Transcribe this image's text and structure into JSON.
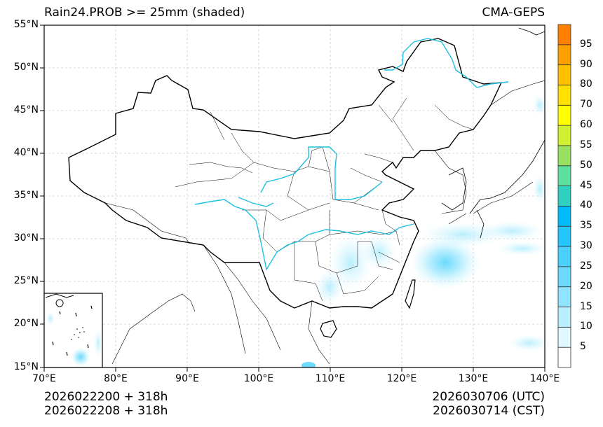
{
  "header": {
    "title": "Rain24.PROB >= 25mm (shaded)",
    "model": "CMA-GEPS"
  },
  "footer": {
    "init_utc": "2026022200 + 318h",
    "init_cst": "2026022208 + 318h",
    "valid_utc": "2026030706 (UTC)",
    "valid_cst": "2026030714 (CST)"
  },
  "map": {
    "extent": {
      "lon": [
        70,
        140
      ],
      "lat": [
        15,
        55
      ]
    },
    "lat_ticks": [
      "55°N",
      "50°N",
      "45°N",
      "40°N",
      "35°N",
      "30°N",
      "25°N",
      "20°N",
      "15°N"
    ],
    "lon_ticks": [
      "70°E",
      "80°E",
      "90°E",
      "100°E",
      "110°E",
      "120°E",
      "130°E",
      "140°E"
    ],
    "gridlines": "dashed light gray",
    "inset": "South China Sea",
    "river_color": "#1ec0e0",
    "shaded_regions": [
      {
        "name": "East China Sea / south of Japan",
        "max_prob_bin": "25-30"
      },
      {
        "name": "Hunan / Jiangxi / Guangxi",
        "max_prob_bin": "10-15"
      },
      {
        "name": "Northwest Pacific east of Japan",
        "max_prob_bin": "5-10"
      },
      {
        "name": "South China Sea (inset)",
        "max_prob_bin": "20-25"
      }
    ]
  },
  "colorbar": {
    "levels": [
      "5",
      "10",
      "15",
      "20",
      "25",
      "30",
      "35",
      "40",
      "45",
      "50",
      "55",
      "60",
      "70",
      "80",
      "90",
      "95"
    ],
    "colors": [
      "#ffffff",
      "#e0f8ff",
      "#b8eefe",
      "#90e4fe",
      "#6cdafd",
      "#4ad0fd",
      "#25c6fd",
      "#00bcfd",
      "#30d0c0",
      "#5ce0a0",
      "#98e060",
      "#d0f030",
      "#ffff00",
      "#ffe000",
      "#ffc000",
      "#ffa000",
      "#ff8000"
    ]
  }
}
